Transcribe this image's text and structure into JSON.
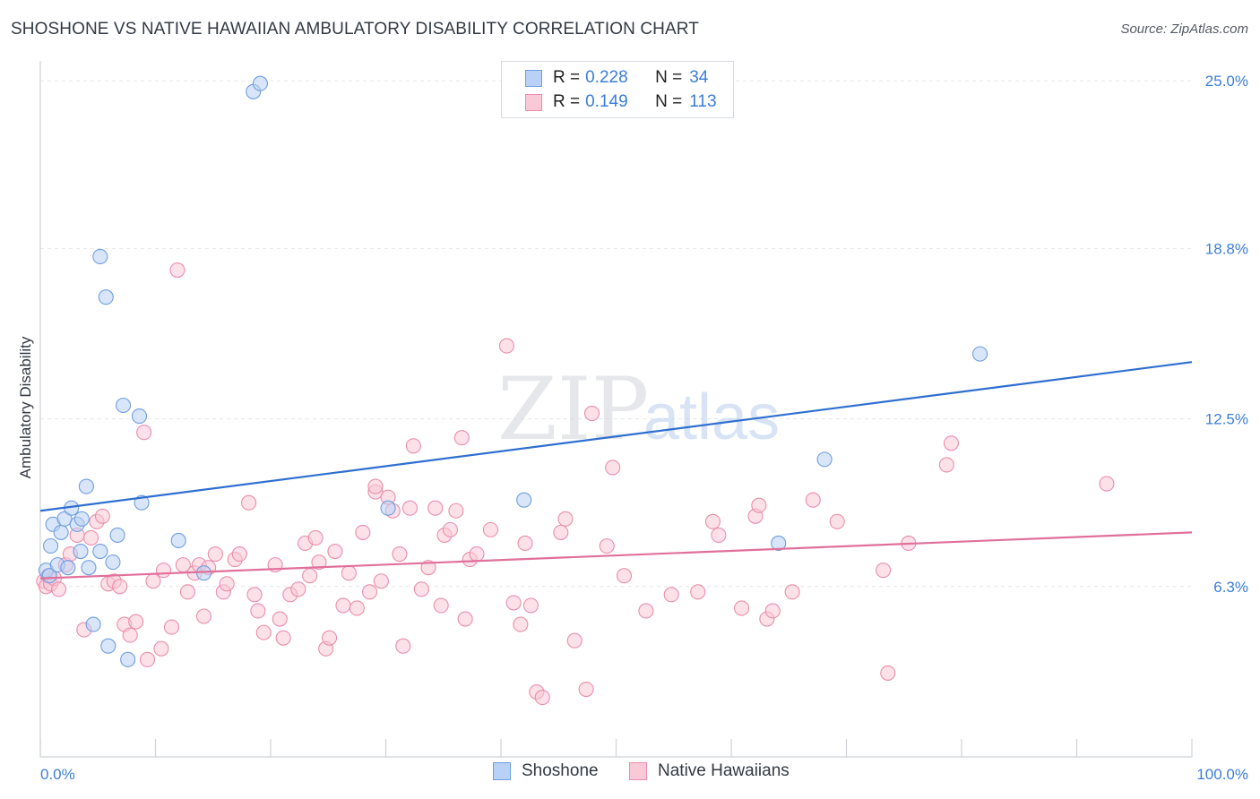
{
  "header": {
    "title": "SHOSHONE VS NATIVE HAWAIIAN AMBULATORY DISABILITY CORRELATION CHART",
    "source": "Source: ZipAtlas.com"
  },
  "watermark": {
    "zip": "ZIP",
    "atlas": "atlas"
  },
  "legend": {
    "r_label": "R =",
    "n_label": "N =",
    "rows": [
      {
        "r": "0.228",
        "n": "34"
      },
      {
        "r": "0.149",
        "n": "113"
      }
    ]
  },
  "colors": {
    "shoshone_fill": "#b9d1f4",
    "shoshone_stroke": "#6f9ee0",
    "shoshone_line": "#2f6fd0",
    "hawaiian_fill": "#f9c9d7",
    "hawaiian_stroke": "#ea8eac",
    "hawaiian_line": "#e0709a",
    "tick_text": "#3b7dd8",
    "grid": "#e3e6ea"
  },
  "chart_data": {
    "type": "scatter",
    "title": "SHOSHONE VS NATIVE HAWAIIAN AMBULATORY DISABILITY CORRELATION CHART",
    "xlabel": "",
    "ylabel": "Ambulatory Disability",
    "xlim": [
      0,
      100
    ],
    "ylim": [
      0,
      26
    ],
    "x_tick_labels": [
      "0.0%",
      "100.0%"
    ],
    "y_ticks": [
      6.3,
      12.5,
      18.8,
      25.0
    ],
    "y_tick_labels": [
      "6.3%",
      "12.5%",
      "18.8%",
      "25.0%"
    ],
    "grid": true,
    "series": [
      {
        "name": "Shoshone",
        "R": 0.228,
        "N": 34,
        "trendline": {
          "x": [
            0,
            100
          ],
          "y": [
            9.1,
            14.6
          ]
        },
        "points": [
          [
            0.5,
            6.9
          ],
          [
            0.8,
            6.7
          ],
          [
            0.9,
            7.8
          ],
          [
            1.1,
            8.6
          ],
          [
            1.5,
            7.1
          ],
          [
            1.8,
            8.3
          ],
          [
            2.1,
            8.8
          ],
          [
            2.4,
            7.0
          ],
          [
            2.7,
            9.2
          ],
          [
            3.2,
            8.6
          ],
          [
            3.5,
            7.6
          ],
          [
            3.6,
            8.8
          ],
          [
            4.0,
            10.0
          ],
          [
            4.2,
            7.0
          ],
          [
            4.6,
            4.9
          ],
          [
            5.2,
            18.5
          ],
          [
            5.2,
            7.6
          ],
          [
            5.7,
            17.0
          ],
          [
            5.9,
            4.1
          ],
          [
            6.3,
            7.2
          ],
          [
            6.7,
            8.2
          ],
          [
            7.2,
            13.0
          ],
          [
            7.6,
            3.6
          ],
          [
            8.6,
            12.6
          ],
          [
            8.8,
            9.4
          ],
          [
            12.0,
            8.0
          ],
          [
            14.2,
            6.8
          ],
          [
            18.5,
            24.6
          ],
          [
            19.1,
            24.9
          ],
          [
            30.2,
            9.2
          ],
          [
            42.0,
            9.5
          ],
          [
            64.1,
            7.9
          ],
          [
            68.1,
            11.0
          ],
          [
            81.6,
            14.9
          ]
        ]
      },
      {
        "name": "Native Hawaiians",
        "R": 0.149,
        "N": 113,
        "trendline": {
          "x": [
            0,
            100
          ],
          "y": [
            6.6,
            8.3
          ]
        },
        "points": [
          [
            0.3,
            6.5
          ],
          [
            0.5,
            6.3
          ],
          [
            0.7,
            6.7
          ],
          [
            0.9,
            6.4
          ],
          [
            1.2,
            6.6
          ],
          [
            1.6,
            6.2
          ],
          [
            2.2,
            7.1
          ],
          [
            2.6,
            7.5
          ],
          [
            3.2,
            8.2
          ],
          [
            3.8,
            4.7
          ],
          [
            4.4,
            8.1
          ],
          [
            4.9,
            8.7
          ],
          [
            5.4,
            8.9
          ],
          [
            5.9,
            6.4
          ],
          [
            6.4,
            6.5
          ],
          [
            6.9,
            6.3
          ],
          [
            7.3,
            4.9
          ],
          [
            7.8,
            4.5
          ],
          [
            8.3,
            5.0
          ],
          [
            9.0,
            12.0
          ],
          [
            9.3,
            3.6
          ],
          [
            9.8,
            6.5
          ],
          [
            10.5,
            4.0
          ],
          [
            10.7,
            6.9
          ],
          [
            11.4,
            4.8
          ],
          [
            11.9,
            18.0
          ],
          [
            12.4,
            7.1
          ],
          [
            12.8,
            6.1
          ],
          [
            13.4,
            6.8
          ],
          [
            13.8,
            7.1
          ],
          [
            14.2,
            5.2
          ],
          [
            14.6,
            7.0
          ],
          [
            15.2,
            7.5
          ],
          [
            15.9,
            6.1
          ],
          [
            16.2,
            6.4
          ],
          [
            16.9,
            7.3
          ],
          [
            17.3,
            7.5
          ],
          [
            18.1,
            9.4
          ],
          [
            18.6,
            6.0
          ],
          [
            18.9,
            5.4
          ],
          [
            19.4,
            4.6
          ],
          [
            20.4,
            7.1
          ],
          [
            20.8,
            5.1
          ],
          [
            21.1,
            4.4
          ],
          [
            21.7,
            6.0
          ],
          [
            22.4,
            6.2
          ],
          [
            23.0,
            7.9
          ],
          [
            23.4,
            6.7
          ],
          [
            23.9,
            8.1
          ],
          [
            24.2,
            7.2
          ],
          [
            24.8,
            4.0
          ],
          [
            25.1,
            4.4
          ],
          [
            25.6,
            7.6
          ],
          [
            26.3,
            5.6
          ],
          [
            26.8,
            6.8
          ],
          [
            27.5,
            5.5
          ],
          [
            28.0,
            8.3
          ],
          [
            28.6,
            6.1
          ],
          [
            29.1,
            9.8
          ],
          [
            29.6,
            6.5
          ],
          [
            30.2,
            9.6
          ],
          [
            30.6,
            9.1
          ],
          [
            31.2,
            7.5
          ],
          [
            31.5,
            4.1
          ],
          [
            32.1,
            9.2
          ],
          [
            32.4,
            11.5
          ],
          [
            33.1,
            6.2
          ],
          [
            33.7,
            7.0
          ],
          [
            34.3,
            9.2
          ],
          [
            34.8,
            5.6
          ],
          [
            35.1,
            8.2
          ],
          [
            35.6,
            8.4
          ],
          [
            36.1,
            9.1
          ],
          [
            36.6,
            11.8
          ],
          [
            36.9,
            5.1
          ],
          [
            37.3,
            7.3
          ],
          [
            37.9,
            7.5
          ],
          [
            39.1,
            8.4
          ],
          [
            40.5,
            15.2
          ],
          [
            41.1,
            5.7
          ],
          [
            41.7,
            4.9
          ],
          [
            42.1,
            7.9
          ],
          [
            42.6,
            5.6
          ],
          [
            43.1,
            2.4
          ],
          [
            43.6,
            2.2
          ],
          [
            45.2,
            8.3
          ],
          [
            45.6,
            8.8
          ],
          [
            46.4,
            4.3
          ],
          [
            47.4,
            2.5
          ],
          [
            47.9,
            12.7
          ],
          [
            49.2,
            7.8
          ],
          [
            49.7,
            10.7
          ],
          [
            50.7,
            6.7
          ],
          [
            52.6,
            5.4
          ],
          [
            54.8,
            6.0
          ],
          [
            57.1,
            6.1
          ],
          [
            58.4,
            8.7
          ],
          [
            58.9,
            8.2
          ],
          [
            60.9,
            5.5
          ],
          [
            62.1,
            8.9
          ],
          [
            62.4,
            9.3
          ],
          [
            63.1,
            5.1
          ],
          [
            63.6,
            5.4
          ],
          [
            65.3,
            6.1
          ],
          [
            67.1,
            9.5
          ],
          [
            69.2,
            8.7
          ],
          [
            73.2,
            6.9
          ],
          [
            73.6,
            3.1
          ],
          [
            75.4,
            7.9
          ],
          [
            78.7,
            10.8
          ],
          [
            79.1,
            11.6
          ],
          [
            92.6,
            10.1
          ],
          [
            29.1,
            10.0
          ]
        ]
      }
    ]
  },
  "bottom_legend": {
    "items": [
      "Shoshone",
      "Native Hawaiians"
    ]
  }
}
